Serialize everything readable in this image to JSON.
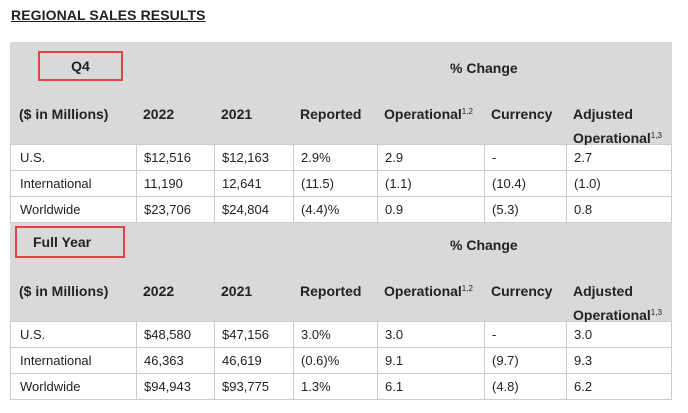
{
  "title": "REGIONAL SALES RESULTS",
  "pct_change_label": "% Change",
  "columns": {
    "label": "($ in Millions)",
    "y2022": "2022",
    "y2021": "2021",
    "reported": "Reported",
    "operational": "Operational",
    "operational_sup": "1,2",
    "currency": "Currency",
    "adjusted_l1": "Adjusted",
    "adjusted_l2": "Operational",
    "adjusted_sup": "1,3"
  },
  "q4": {
    "period": "Q4",
    "rows": [
      {
        "region": "U.S.",
        "y2022": "$12,516",
        "y2021": "$12,163",
        "reported": "2.9%",
        "operational": "2.9",
        "currency": "-",
        "adjusted": "2.7"
      },
      {
        "region": "International",
        "y2022": "11,190",
        "y2021": "12,641",
        "reported": "(11.5)",
        "operational": "(1.1)",
        "currency": "(10.4)",
        "adjusted": "(1.0)"
      },
      {
        "region": "Worldwide",
        "y2022": "$23,706",
        "y2021": "$24,804",
        "reported": "(4.4)%",
        "operational": "0.9",
        "currency": "(5.3)",
        "adjusted": "0.8"
      }
    ]
  },
  "fy": {
    "period": "Full Year",
    "rows": [
      {
        "region": "U.S.",
        "y2022": "$48,580",
        "y2021": "$47,156",
        "reported": "3.0%",
        "operational": "3.0",
        "currency": "-",
        "adjusted": "3.0"
      },
      {
        "region": "International",
        "y2022": "46,363",
        "y2021": "46,619",
        "reported": "(0.6)%",
        "operational": "9.1",
        "currency": "(9.7)",
        "adjusted": "9.3"
      },
      {
        "region": "Worldwide",
        "y2022": "$94,943",
        "y2021": "$93,775",
        "reported": "1.3%",
        "operational": "6.1",
        "currency": "(4.8)",
        "adjusted": "6.2"
      }
    ]
  },
  "colors": {
    "header_bg": "#d9d9d9",
    "highlight_box": "#e04444",
    "grid": "#cccccc"
  }
}
